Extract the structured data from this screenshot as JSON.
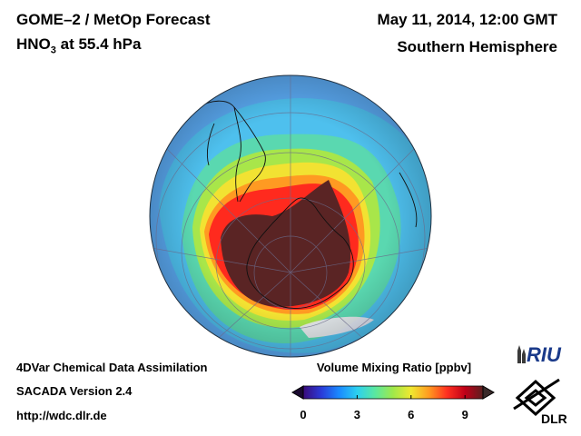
{
  "header": {
    "title": "GOME–2 / MetOp Forecast",
    "species_main": "HNO",
    "species_sub": "3",
    "species_level": " at 55.4 hPa",
    "datetime": "May 11, 2014, 12:00 GMT",
    "region": "Southern Hemisphere"
  },
  "footer": {
    "line1": "4DVar Chemical Data Assimilation",
    "line2": "SACADA Version 2.4",
    "line3": "http://wdc.dlr.de"
  },
  "colorbar": {
    "title": "Volume Mixing Ratio [ppbv]",
    "ticks": [
      "0",
      "3",
      "6",
      "9"
    ],
    "range": [
      0,
      10
    ],
    "colors": [
      "#3a0a7a",
      "#2a3ad8",
      "#1a8aff",
      "#2cd0f0",
      "#5ae8a0",
      "#a0e84a",
      "#f0e830",
      "#ff9a20",
      "#ff3020",
      "#c00018",
      "#5a2020"
    ]
  },
  "logos": {
    "riu": "RIU",
    "dlr": "DLR"
  },
  "map": {
    "projection": "orthographic",
    "center": "south-pole",
    "background_field": "#5aa8f0"
  }
}
